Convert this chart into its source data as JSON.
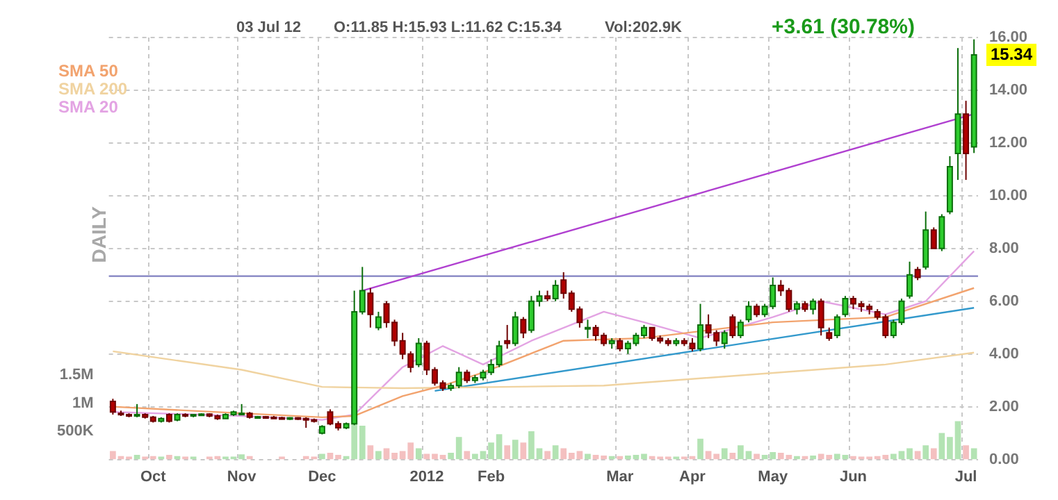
{
  "chart_data": {
    "type": "candlestick",
    "annotations": [
      "03 Jul 12",
      "O:11.85 H:15.93 L:11.62 C:15.34",
      "Vol:202.9K",
      "+3.61 (30.78%)",
      "15.34",
      "DAILY"
    ],
    "categories": [
      null,
      null,
      null,
      null,
      null,
      "Oct",
      null,
      null,
      null,
      null,
      null,
      null,
      null,
      null,
      null,
      null,
      "Nov",
      null,
      null,
      null,
      null,
      null,
      null,
      null,
      null,
      null,
      "Dec",
      null,
      null,
      null,
      null,
      null,
      null,
      null,
      null,
      null,
      null,
      null,
      null,
      "2012",
      null,
      null,
      null,
      null,
      null,
      null,
      null,
      "Feb",
      null,
      null,
      null,
      null,
      null,
      null,
      null,
      null,
      null,
      null,
      null,
      null,
      null,
      null,
      null,
      "Mar",
      null,
      null,
      null,
      null,
      null,
      null,
      null,
      null,
      "Apr",
      null,
      null,
      null,
      null,
      null,
      null,
      null,
      null,
      null,
      "May",
      null,
      null,
      null,
      null,
      null,
      null,
      null,
      null,
      null,
      "Jun",
      null,
      null,
      null,
      null,
      null,
      null,
      null,
      null,
      null,
      null,
      null,
      null,
      null,
      "Jul",
      null
    ],
    "ohlc": [
      [
        2.2,
        2.3,
        1.7,
        1.8
      ],
      [
        1.75,
        1.85,
        1.65,
        1.7
      ],
      [
        1.7,
        1.75,
        1.6,
        1.65
      ],
      [
        1.65,
        2.1,
        1.6,
        1.7
      ],
      [
        1.7,
        1.75,
        1.55,
        1.6
      ],
      [
        1.6,
        1.65,
        1.4,
        1.45
      ],
      [
        1.45,
        1.6,
        1.4,
        1.55
      ],
      [
        1.7,
        1.75,
        1.4,
        1.45
      ],
      [
        1.5,
        1.75,
        1.45,
        1.7
      ],
      [
        1.7,
        1.75,
        1.6,
        1.65
      ],
      [
        1.65,
        1.7,
        1.6,
        1.7
      ],
      [
        1.7,
        1.75,
        1.65,
        1.72
      ],
      [
        1.72,
        1.75,
        1.6,
        1.65
      ],
      [
        1.65,
        1.7,
        1.5,
        1.55
      ],
      [
        1.55,
        1.75,
        1.55,
        1.7
      ],
      [
        1.7,
        1.85,
        1.65,
        1.8
      ],
      [
        1.75,
        2.1,
        1.7,
        1.75
      ],
      [
        1.75,
        1.8,
        1.55,
        1.6
      ],
      [
        1.6,
        1.65,
        1.55,
        1.62
      ],
      [
        1.62,
        1.65,
        1.58,
        1.6
      ],
      [
        1.6,
        1.65,
        1.55,
        1.58
      ],
      [
        1.58,
        1.62,
        1.52,
        1.55
      ],
      [
        1.55,
        1.6,
        1.5,
        1.58
      ],
      [
        1.58,
        1.6,
        1.5,
        1.55
      ],
      [
        1.55,
        1.6,
        1.2,
        1.5
      ],
      [
        1.5,
        1.55,
        1.4,
        1.45
      ],
      [
        1.0,
        1.3,
        0.95,
        1.25
      ],
      [
        1.8,
        1.9,
        1.3,
        1.35
      ],
      [
        1.35,
        1.45,
        1.1,
        1.2
      ],
      [
        1.2,
        1.4,
        1.15,
        1.35
      ],
      [
        1.35,
        6.4,
        1.3,
        5.6
      ],
      [
        5.6,
        7.3,
        5.5,
        6.4
      ],
      [
        6.3,
        6.5,
        5.0,
        5.5
      ],
      [
        5.0,
        5.6,
        4.9,
        5.4
      ],
      [
        5.9,
        6.0,
        5.0,
        5.2
      ],
      [
        5.2,
        5.3,
        4.3,
        4.5
      ],
      [
        4.5,
        4.8,
        3.8,
        4.0
      ],
      [
        4.0,
        4.1,
        3.3,
        3.5
      ],
      [
        3.6,
        4.6,
        3.5,
        4.4
      ],
      [
        4.4,
        4.5,
        3.2,
        3.4
      ],
      [
        3.4,
        3.5,
        2.8,
        2.9
      ],
      [
        2.9,
        3.0,
        2.6,
        2.7
      ],
      [
        2.7,
        2.9,
        2.6,
        2.8
      ],
      [
        2.8,
        3.5,
        2.7,
        3.3
      ],
      [
        3.3,
        3.4,
        2.9,
        3.0
      ],
      [
        3.0,
        3.2,
        2.9,
        3.1
      ],
      [
        3.1,
        3.4,
        3.0,
        3.3
      ],
      [
        3.3,
        3.8,
        3.2,
        3.6
      ],
      [
        3.6,
        4.5,
        3.5,
        4.3
      ],
      [
        4.5,
        5.1,
        4.2,
        4.4
      ],
      [
        4.4,
        5.6,
        4.3,
        5.4
      ],
      [
        5.3,
        5.4,
        4.6,
        4.8
      ],
      [
        4.9,
        6.2,
        4.8,
        6.0
      ],
      [
        6.0,
        6.4,
        5.8,
        6.2
      ],
      [
        6.2,
        6.4,
        6.0,
        6.1
      ],
      [
        6.1,
        6.8,
        6.0,
        6.6
      ],
      [
        6.8,
        7.1,
        6.1,
        6.3
      ],
      [
        6.3,
        6.4,
        5.6,
        5.7
      ],
      [
        5.7,
        5.8,
        5.0,
        5.2
      ],
      [
        5.0,
        5.3,
        4.6,
        5.0
      ],
      [
        5.0,
        5.1,
        4.5,
        4.7
      ],
      [
        4.7,
        4.8,
        4.3,
        4.4
      ],
      [
        4.4,
        4.6,
        4.2,
        4.5
      ],
      [
        4.5,
        4.6,
        4.1,
        4.2
      ],
      [
        4.2,
        4.5,
        4.0,
        4.4
      ],
      [
        4.4,
        4.8,
        4.3,
        4.7
      ],
      [
        4.7,
        5.1,
        4.6,
        5.0
      ],
      [
        5.0,
        5.0,
        4.5,
        4.6
      ],
      [
        4.6,
        4.7,
        4.4,
        4.5
      ],
      [
        4.5,
        4.6,
        4.3,
        4.4
      ],
      [
        4.4,
        4.6,
        4.3,
        4.5
      ],
      [
        4.5,
        4.6,
        4.3,
        4.4
      ],
      [
        4.4,
        4.6,
        4.1,
        4.2
      ],
      [
        4.2,
        5.9,
        4.1,
        5.1
      ],
      [
        5.1,
        5.5,
        4.6,
        4.8
      ],
      [
        4.8,
        4.9,
        4.3,
        4.5
      ],
      [
        4.4,
        4.9,
        4.2,
        4.8
      ],
      [
        5.4,
        5.5,
        4.6,
        4.7
      ],
      [
        4.7,
        5.3,
        4.6,
        5.2
      ],
      [
        5.3,
        6.0,
        5.2,
        5.8
      ],
      [
        5.8,
        5.9,
        5.4,
        5.5
      ],
      [
        5.5,
        5.9,
        5.4,
        5.8
      ],
      [
        5.8,
        6.9,
        5.7,
        6.6
      ],
      [
        6.6,
        6.8,
        6.2,
        6.4
      ],
      [
        6.4,
        6.5,
        5.6,
        5.7
      ],
      [
        5.7,
        6.0,
        5.5,
        5.9
      ],
      [
        5.9,
        6.0,
        5.6,
        5.7
      ],
      [
        5.7,
        6.1,
        5.5,
        6.0
      ],
      [
        6.0,
        6.1,
        4.7,
        5.0
      ],
      [
        4.8,
        5.0,
        4.5,
        4.6
      ],
      [
        4.7,
        5.5,
        4.6,
        5.4
      ],
      [
        5.5,
        6.2,
        5.4,
        6.1
      ],
      [
        6.1,
        6.2,
        5.7,
        5.9
      ],
      [
        5.9,
        6.0,
        5.6,
        5.8
      ],
      [
        5.8,
        5.9,
        5.5,
        5.7
      ],
      [
        5.6,
        5.7,
        5.3,
        5.4
      ],
      [
        5.4,
        5.5,
        4.6,
        4.7
      ],
      [
        4.7,
        5.3,
        4.6,
        5.2
      ],
      [
        5.2,
        6.1,
        5.1,
        6.0
      ],
      [
        6.2,
        7.5,
        6.1,
        7.0
      ],
      [
        7.2,
        7.3,
        6.8,
        6.9
      ],
      [
        7.3,
        9.4,
        7.2,
        8.7
      ],
      [
        8.7,
        8.8,
        8.0,
        8.0
      ],
      [
        8.0,
        9.3,
        7.9,
        9.2
      ],
      [
        9.4,
        11.5,
        9.3,
        11.1
      ],
      [
        11.6,
        15.6,
        10.6,
        13.1
      ],
      [
        13.1,
        13.6,
        10.6,
        11.6
      ],
      [
        11.85,
        15.93,
        11.62,
        15.34
      ]
    ],
    "series": [
      {
        "name": "SMA 50",
        "type": "line",
        "color": "#f2a36e",
        "values": [
          2.0,
          null,
          null,
          null,
          null,
          null,
          null,
          null,
          null,
          null,
          null,
          null,
          null,
          null,
          null,
          null,
          1.75,
          null,
          null,
          null,
          null,
          null,
          null,
          null,
          null,
          null,
          1.6,
          null,
          null,
          null,
          1.65,
          null,
          null,
          null,
          null,
          null,
          2.4,
          null,
          null,
          null,
          null,
          2.8,
          null,
          null,
          null,
          null,
          3.3,
          null,
          null,
          null,
          null,
          null,
          null,
          null,
          null,
          null,
          4.5,
          null,
          null,
          null,
          null,
          null,
          null,
          null,
          null,
          null,
          4.6,
          null,
          null,
          null,
          null,
          null,
          null,
          null,
          null,
          null,
          null,
          null,
          null,
          null,
          null,
          null,
          5.2,
          null,
          null,
          null,
          null,
          null,
          null,
          null,
          null,
          null,
          null,
          null,
          null,
          null,
          5.4,
          null,
          null,
          null,
          null,
          null,
          null,
          null,
          null,
          null,
          null,
          6.5
        ]
      },
      {
        "name": "SMA 200",
        "type": "line",
        "color": "#f0d3a0",
        "values": [
          4.1,
          null,
          null,
          null,
          null,
          null,
          null,
          null,
          null,
          null,
          null,
          null,
          null,
          null,
          null,
          null,
          3.4,
          null,
          null,
          null,
          null,
          null,
          null,
          null,
          null,
          null,
          2.75,
          null,
          null,
          null,
          null,
          null,
          null,
          null,
          null,
          null,
          2.7,
          null,
          null,
          null,
          null,
          null,
          null,
          null,
          null,
          null,
          null,
          null,
          null,
          null,
          null,
          null,
          null,
          null,
          null,
          null,
          null,
          null,
          null,
          null,
          null,
          2.8,
          null,
          null,
          null,
          null,
          null,
          null,
          null,
          null,
          null,
          null,
          null,
          null,
          null,
          null,
          null,
          null,
          null,
          null,
          null,
          null,
          null,
          null,
          null,
          null,
          null,
          null,
          null,
          null,
          null,
          null,
          null,
          null,
          null,
          null,
          3.6,
          null,
          null,
          null,
          null,
          null,
          null,
          null,
          null,
          null,
          null,
          4.05
        ]
      },
      {
        "name": "SMA 20",
        "type": "line",
        "color": "#e3a3e3",
        "values": [
          1.8,
          null,
          null,
          null,
          null,
          null,
          null,
          null,
          null,
          null,
          null,
          null,
          null,
          null,
          null,
          null,
          1.65,
          null,
          null,
          null,
          null,
          null,
          null,
          null,
          null,
          null,
          1.5,
          null,
          null,
          null,
          1.7,
          null,
          null,
          null,
          null,
          null,
          3.5,
          null,
          null,
          null,
          null,
          4.3,
          null,
          null,
          null,
          null,
          3.6,
          null,
          null,
          null,
          null,
          null,
          4.5,
          null,
          null,
          null,
          null,
          null,
          null,
          null,
          null,
          5.6,
          null,
          null,
          null,
          null,
          5.2,
          null,
          null,
          null,
          null,
          null,
          null,
          4.6,
          null,
          null,
          null,
          null,
          null,
          null,
          null,
          null,
          5.4,
          null,
          null,
          null,
          null,
          null,
          6.0,
          null,
          null,
          null,
          null,
          null,
          null,
          null,
          5.5,
          null,
          null,
          null,
          null,
          6.0,
          null,
          null,
          null,
          null,
          null,
          7.9
        ]
      },
      {
        "type": "line",
        "color": "#b040d0",
        "values": [
          null,
          null,
          null,
          null,
          null,
          null,
          null,
          null,
          null,
          null,
          null,
          null,
          null,
          null,
          null,
          null,
          null,
          null,
          null,
          null,
          null,
          null,
          null,
          null,
          null,
          null,
          null,
          null,
          null,
          null,
          null,
          6.4,
          null,
          null,
          null,
          null,
          null,
          null,
          null,
          null,
          null,
          null,
          null,
          null,
          null,
          null,
          null,
          null,
          null,
          null,
          null,
          null,
          null,
          null,
          null,
          null,
          null,
          null,
          null,
          null,
          null,
          null,
          null,
          null,
          null,
          null,
          null,
          null,
          null,
          null,
          null,
          null,
          null,
          null,
          null,
          null,
          null,
          null,
          null,
          null,
          null,
          null,
          null,
          null,
          null,
          null,
          null,
          null,
          null,
          null,
          null,
          null,
          null,
          null,
          null,
          null,
          null,
          null,
          null,
          null,
          null,
          null,
          null,
          null,
          null,
          null,
          null,
          13.1
        ]
      },
      {
        "type": "line",
        "color": "#3399cc",
        "values": [
          null,
          null,
          null,
          null,
          null,
          null,
          null,
          null,
          null,
          null,
          null,
          null,
          null,
          null,
          null,
          null,
          null,
          null,
          null,
          null,
          null,
          null,
          null,
          null,
          null,
          null,
          null,
          null,
          null,
          null,
          null,
          null,
          null,
          null,
          null,
          null,
          null,
          null,
          null,
          null,
          2.6,
          null,
          null,
          null,
          null,
          null,
          null,
          null,
          null,
          null,
          null,
          null,
          null,
          null,
          null,
          null,
          null,
          null,
          null,
          null,
          null,
          null,
          null,
          null,
          null,
          null,
          null,
          null,
          null,
          null,
          null,
          null,
          null,
          null,
          null,
          null,
          null,
          null,
          null,
          null,
          null,
          null,
          null,
          null,
          null,
          null,
          null,
          null,
          null,
          null,
          null,
          null,
          null,
          null,
          null,
          null,
          null,
          null,
          null,
          null,
          null,
          null,
          null,
          null,
          null,
          null,
          null,
          5.75
        ]
      },
      {
        "type": "bar",
        "axis": "y2",
        "colors": [
          "#f4c0c0",
          "#f4c0c0",
          "#f4c0c0",
          "#b3e3b3",
          "#f4c0c0",
          "#f4c0c0",
          "#b3e3b3",
          "#f4c0c0",
          "#b3e3b3",
          "#f4c0c0",
          "#b3e3b3",
          "#b3e3b3",
          "#f4c0c0",
          "#f4c0c0",
          "#b3e3b3",
          "#b3e3b3",
          "#b3e3b3",
          "#f4c0c0",
          "#b3e3b3",
          "#f4c0c0",
          "#f4c0c0",
          "#f4c0c0",
          "#b3e3b3",
          "#f4c0c0",
          "#f4c0c0",
          "#f4c0c0",
          "#b3e3b3",
          "#f4c0c0",
          "#f4c0c0",
          "#b3e3b3",
          "#b3e3b3",
          "#b3e3b3",
          "#f4c0c0",
          "#b3e3b3",
          "#f4c0c0",
          "#f4c0c0",
          "#f4c0c0",
          "#f4c0c0",
          "#b3e3b3",
          "#f4c0c0",
          "#f4c0c0",
          "#f4c0c0",
          "#b3e3b3",
          "#b3e3b3",
          "#f4c0c0",
          "#b3e3b3",
          "#b3e3b3",
          "#b3e3b3",
          "#b3e3b3",
          "#f4c0c0",
          "#b3e3b3",
          "#f4c0c0",
          "#b3e3b3",
          "#b3e3b3",
          "#f4c0c0",
          "#b3e3b3",
          "#f4c0c0",
          "#f4c0c0",
          "#f4c0c0",
          "#b3e3b3",
          "#f4c0c0",
          "#f4c0c0",
          "#b3e3b3",
          "#f4c0c0",
          "#b3e3b3",
          "#b3e3b3",
          "#b3e3b3",
          "#f4c0c0",
          "#f4c0c0",
          "#f4c0c0",
          "#b3e3b3",
          "#f4c0c0",
          "#f4c0c0",
          "#b3e3b3",
          "#f4c0c0",
          "#f4c0c0",
          "#b3e3b3",
          "#f4c0c0",
          "#b3e3b3",
          "#b3e3b3",
          "#f4c0c0",
          "#b3e3b3",
          "#b3e3b3",
          "#f4c0c0",
          "#f4c0c0",
          "#b3e3b3",
          "#f4c0c0",
          "#b3e3b3",
          "#f4c0c0",
          "#f4c0c0",
          "#b3e3b3",
          "#b3e3b3",
          "#f4c0c0",
          "#f4c0c0",
          "#f4c0c0",
          "#f4c0c0",
          "#f4c0c0",
          "#b3e3b3",
          "#b3e3b3",
          "#b3e3b3",
          "#f4c0c0",
          "#b3e3b3",
          "#f4c0c0",
          "#b3e3b3",
          "#b3e3b3",
          "#b3e3b3",
          "#f4c0c0",
          "#b3e3b3"
        ],
        "values": [
          150000,
          60000,
          50000,
          80000,
          50000,
          60000,
          50000,
          80000,
          60000,
          50000,
          50000,
          null,
          50000,
          60000,
          50000,
          50000,
          90000,
          60000,
          null,
          null,
          null,
          50000,
          null,
          null,
          60000,
          50000,
          100000,
          120000,
          80000,
          60000,
          1100000,
          600000,
          250000,
          150000,
          200000,
          120000,
          150000,
          300000,
          200000,
          100000,
          100000,
          80000,
          120000,
          400000,
          150000,
          100000,
          150000,
          300000,
          450000,
          250000,
          350000,
          300000,
          500000,
          200000,
          150000,
          250000,
          200000,
          120000,
          150000,
          100000,
          80000,
          70000,
          60000,
          60000,
          70000,
          80000,
          100000,
          60000,
          50000,
          50000,
          50000,
          50000,
          60000,
          370000,
          150000,
          100000,
          200000,
          120000,
          250000,
          150000,
          100000,
          80000,
          130000,
          120000,
          80000,
          60000,
          60000,
          70000,
          100000,
          80000,
          100000,
          80000,
          60000,
          50000,
          50000,
          60000,
          80000,
          100000,
          150000,
          200000,
          150000,
          250000,
          200000,
          470000,
          400000,
          680000,
          250000,
          200000
        ]
      }
    ],
    "ylim": [
      0,
      16
    ],
    "yticks": [
      {
        "value": 0,
        "label": "0.00"
      },
      {
        "value": 2,
        "label": "2.00"
      },
      {
        "value": 4,
        "label": "4.00"
      },
      {
        "value": 6,
        "label": "6.00"
      },
      {
        "value": 8,
        "label": "8.00"
      },
      {
        "value": 10,
        "label": "10.00"
      },
      {
        "value": 12,
        "label": "12.00"
      },
      {
        "value": 14,
        "label": "14.00"
      },
      {
        "value": 16,
        "label": "16.00"
      }
    ],
    "y2lim": [
      0,
      7500000
    ],
    "y2ticks": [
      {
        "value": 500000,
        "label": "500K"
      },
      {
        "value": 1000000,
        "label": "1M"
      },
      {
        "value": 1500000,
        "label": "1.5M"
      }
    ],
    "ref_lines": [
      {
        "axis": "y",
        "value": 6.95,
        "color": "#8080c0"
      }
    ],
    "grid": true,
    "legend": "top left"
  }
}
